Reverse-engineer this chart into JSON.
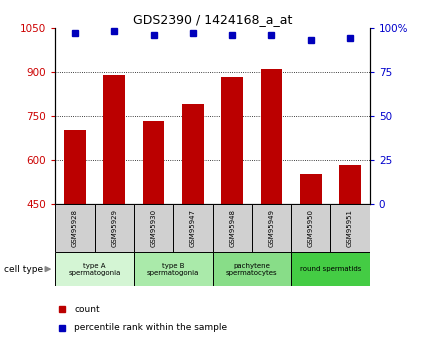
{
  "title": "GDS2390 / 1424168_a_at",
  "samples": [
    "GSM95928",
    "GSM95929",
    "GSM95930",
    "GSM95947",
    "GSM95948",
    "GSM95949",
    "GSM95950",
    "GSM95951"
  ],
  "counts": [
    700,
    890,
    730,
    790,
    880,
    910,
    550,
    580
  ],
  "percentile_ranks": [
    97,
    98,
    96,
    97,
    96,
    96,
    93,
    94
  ],
  "ylim_left": [
    450,
    1050
  ],
  "ylim_right": [
    0,
    100
  ],
  "yticks_left": [
    450,
    600,
    750,
    900,
    1050
  ],
  "yticks_right": [
    0,
    25,
    50,
    75,
    100
  ],
  "cell_types": [
    {
      "label": "type A\nspermatogonia",
      "samples": [
        0,
        1
      ],
      "color": "#d4f5d4"
    },
    {
      "label": "type B\nspermatogonia",
      "samples": [
        2,
        3
      ],
      "color": "#aaeaaa"
    },
    {
      "label": "pachytene\nspermatocytes",
      "samples": [
        4,
        5
      ],
      "color": "#88dd88"
    },
    {
      "label": "round spermatids",
      "samples": [
        6,
        7
      ],
      "color": "#44cc44"
    }
  ],
  "bar_color": "#bb0000",
  "dot_color": "#0000bb",
  "bar_width": 0.55,
  "grid_yticks": [
    600,
    750,
    900
  ],
  "tick_label_color_left": "#cc0000",
  "tick_label_color_right": "#0000cc",
  "sample_box_color": "#d0d0d0",
  "cell_type_label": "cell type"
}
